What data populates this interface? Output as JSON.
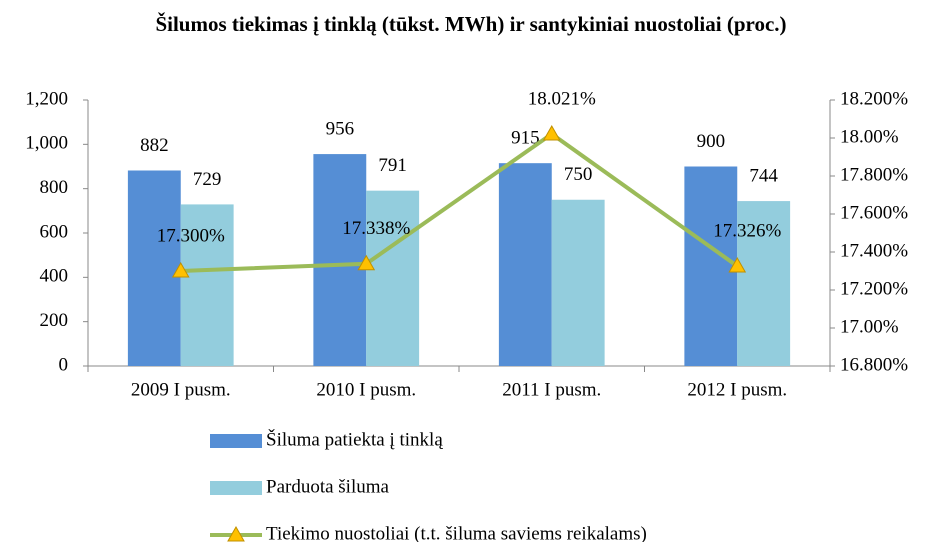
{
  "chart_data": {
    "type": "bar",
    "title": "Šilumos tiekimas į tinklą (tūkst. MWh) ir santykiniai nuostoliai (proc.)",
    "categories": [
      "2009 I pusm.",
      "2010 I pusm.",
      "2011 I pusm.",
      "2012 I pusm."
    ],
    "series": [
      {
        "name": "Šiluma patiekta į tinklą",
        "color": "#558ed5",
        "values": [
          882,
          956,
          915,
          900
        ]
      },
      {
        "name": "Parduota šiluma",
        "color": "#93cddd",
        "values": [
          729,
          791,
          750,
          744
        ]
      },
      {
        "name": "Tiekimo nuostoliai (t.t. šiluma saviems reikalams)",
        "type": "line",
        "axis": "y2",
        "color": "#9bbb59",
        "marker_color": "#ffc000",
        "values": [
          17.3,
          17.338,
          18.021,
          17.326
        ],
        "value_labels": [
          "17.300%",
          "17.338%",
          "18.021%",
          "17.326%"
        ]
      }
    ],
    "ylim": [
      0,
      1200
    ],
    "yticks": [
      0,
      200,
      400,
      600,
      800,
      {
        "value": 1000,
        "label": "1,000"
      },
      {
        "value": 1200,
        "label": "1,200"
      }
    ],
    "y2lim": [
      16.8,
      18.2
    ],
    "y2ticks": [
      {
        "value": 16.8,
        "label": "16.800%"
      },
      {
        "value": 17.0,
        "label": "17.00%"
      },
      {
        "value": 17.2,
        "label": "17.200%"
      },
      {
        "value": 17.4,
        "label": "17.400%"
      },
      {
        "value": 17.6,
        "label": "17.600%"
      },
      {
        "value": 17.8,
        "label": "17.800%"
      },
      {
        "value": 18.0,
        "label": "18.00%"
      },
      {
        "value": 18.2,
        "label": "18.200%"
      }
    ],
    "legend": "bottom"
  }
}
